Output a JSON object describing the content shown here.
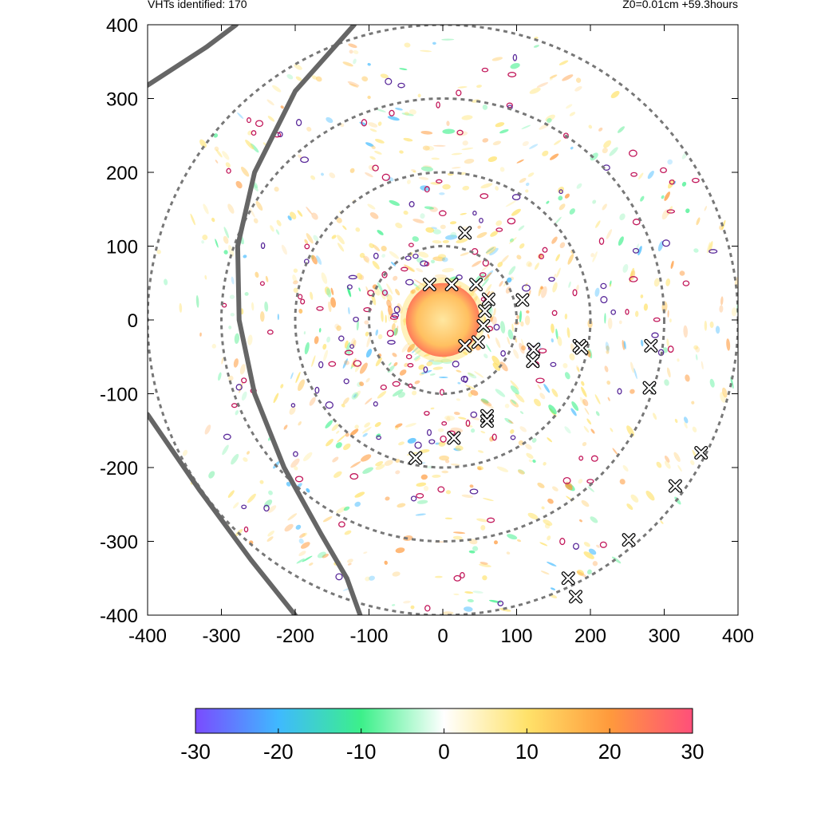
{
  "header": {
    "left_text": "VHTs identified: 170",
    "right_text": "Z0=0.01cm  +59.3hours"
  },
  "chart_data": {
    "type": "heatmap",
    "title": "",
    "xlabel": "",
    "ylabel": "",
    "xlim": [
      -400,
      400
    ],
    "ylim": [
      -400,
      400
    ],
    "x_ticks": [
      -400,
      -300,
      -200,
      -100,
      0,
      100,
      200,
      300,
      400
    ],
    "y_ticks": [
      -400,
      -300,
      -200,
      -100,
      0,
      100,
      200,
      300,
      400
    ],
    "x_tick_labels": [
      "-400",
      "-300",
      "-200",
      "-100",
      "0",
      "100",
      "200",
      "300",
      "400"
    ],
    "y_tick_labels": [
      "-400",
      "-300",
      "-200",
      "-100",
      "0",
      "100",
      "200",
      "300",
      "400"
    ],
    "grid": false,
    "range_rings_radii": [
      100,
      200,
      300,
      400
    ],
    "colorbar": {
      "range": [
        -30,
        30
      ],
      "ticks": [
        -30,
        -20,
        -10,
        0,
        10,
        20,
        30
      ],
      "tick_labels": [
        "-30",
        "-20",
        "-10",
        "0",
        "10",
        "20",
        "30"
      ],
      "colors": [
        "#7a4bff",
        "#3fb9ff",
        "#3cf08a",
        "#ffffff",
        "#ffe26a",
        "#ff9a3c",
        "#ff4f7a"
      ]
    },
    "eye": {
      "center": [
        0,
        0
      ],
      "radius": 50,
      "colors": [
        "#ffe7a0",
        "#ffc060",
        "#ff7a5a"
      ]
    },
    "tracks": [
      {
        "points": [
          [
            -400,
            318
          ],
          [
            -320,
            370
          ],
          [
            -280,
            400
          ]
        ]
      },
      {
        "points": [
          [
            -400,
            -128
          ],
          [
            -330,
            -230
          ],
          [
            -260,
            -325
          ],
          [
            -200,
            -400
          ]
        ]
      },
      {
        "points": [
          [
            -120,
            400
          ],
          [
            -200,
            310
          ],
          [
            -255,
            200
          ],
          [
            -278,
            100
          ],
          [
            -276,
            0
          ],
          [
            -255,
            -100
          ],
          [
            -215,
            -200
          ],
          [
            -165,
            -290
          ],
          [
            -130,
            -350
          ],
          [
            -112,
            -400
          ]
        ]
      }
    ],
    "vht_markers": [
      [
        30,
        118
      ],
      [
        -18,
        48
      ],
      [
        12,
        48
      ],
      [
        45,
        48
      ],
      [
        62,
        28
      ],
      [
        57,
        12
      ],
      [
        55,
        -8
      ],
      [
        48,
        -30
      ],
      [
        30,
        -35
      ],
      [
        108,
        27
      ],
      [
        123,
        -40
      ],
      [
        122,
        -56
      ],
      [
        185,
        -35
      ],
      [
        188,
        -38
      ],
      [
        282,
        -35
      ],
      [
        280,
        -92
      ],
      [
        60,
        -130
      ],
      [
        60,
        -137
      ],
      [
        15,
        -160
      ],
      [
        -37,
        -187
      ],
      [
        350,
        -180
      ],
      [
        315,
        -225
      ],
      [
        252,
        -298
      ],
      [
        170,
        -350
      ],
      [
        180,
        -375
      ]
    ]
  }
}
